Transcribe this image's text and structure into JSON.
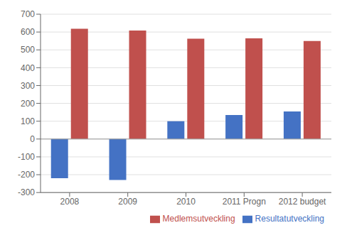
{
  "chart_data": {
    "type": "bar",
    "categories": [
      "2008",
      "2009",
      "2010",
      "2011 Progn",
      "2012 budget"
    ],
    "series": [
      {
        "name": "Resultatutveckling",
        "color": "#4472C4",
        "values": [
          -220,
          -230,
          100,
          135,
          155
        ]
      },
      {
        "name": "Medlemsutveckling",
        "color": "#C0504D",
        "values": [
          618,
          608,
          563,
          565,
          550
        ]
      }
    ],
    "ylim": [
      -300,
      700
    ],
    "yticks": [
      -300,
      -200,
      -100,
      0,
      100,
      200,
      300,
      400,
      500,
      600,
      700
    ],
    "grid": true,
    "legend": "lower right"
  }
}
